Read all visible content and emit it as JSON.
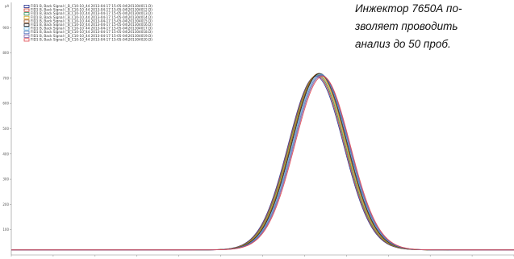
{
  "caption": {
    "lines": [
      "Инжектор 7650А по-",
      "зволяет проводить",
      "анализ до 50 проб."
    ]
  },
  "chart_data": {
    "type": "line",
    "ylabel": "pA",
    "ylim": [
      0,
      1000
    ],
    "xlim": [
      0,
      240
    ],
    "y_ticks": [
      100,
      200,
      300,
      400,
      500,
      600,
      700,
      800,
      900
    ],
    "baseline": 20,
    "peak": {
      "center": 147,
      "height": 700,
      "width_sigma": 13.2
    },
    "series": [
      {
        "name": "FID1 B, Back Signal (_B_C10-10_44 2013-04-17 15-05-04\\201304011.D)",
        "color": "#1f2a8a"
      },
      {
        "name": "FID1 B, Back Signal (_B_C10-10_44 2013-04-17 15-05-04\\201304012.D)",
        "color": "#c0392b"
      },
      {
        "name": "FID1 B, Back Signal (_B_C10-10_44 2013-04-17 15-05-04\\201304013.D)",
        "color": "#2e8b57"
      },
      {
        "name": "FID1 B, Back Signal (_B_C10-10_44 2013-04-17 15-05-04\\201304014.D)",
        "color": "#d4a017"
      },
      {
        "name": "FID1 B, Back Signal (_B_C10-10_44 2013-04-17 15-05-04\\201304015.D)",
        "color": "#8b4513"
      },
      {
        "name": "FID1 B, Back Signal (_B_C10-10_44 2013-04-17 15-05-04\\201304016.D)",
        "color": "#111111"
      },
      {
        "name": "FID1 B, Back Signal (_B_C10-10_44 2013-04-17 15-05-04\\201304017.D)",
        "color": "#5fa8d3"
      },
      {
        "name": "FID1 B, Back Signal (_B_C10-10_44 2013-04-17 15-05-04\\201304018.D)",
        "color": "#4b6cb7"
      },
      {
        "name": "FID1 B, Back Signal (_B_C10-10_44 2013-04-17 15-05-04\\201304019.D)",
        "color": "#7b5ea7"
      },
      {
        "name": "FID1 B, Back Signal (_B_C10-10_44 2013-04-17 15-05-04\\201304020.D)",
        "color": "#e0444c"
      }
    ]
  }
}
